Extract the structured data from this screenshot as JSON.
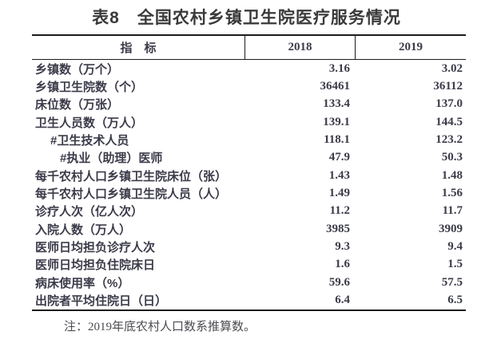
{
  "title": "表8　全国农村乡镇卫生院医疗服务情况",
  "table": {
    "columns": {
      "indicator": "指　标",
      "year1": "2018",
      "year2": "2019"
    },
    "rows": [
      {
        "label": "乡镇数（万个）",
        "v2018": "3.16",
        "v2019": "3.02",
        "indent": 0
      },
      {
        "label": "乡镇卫生院数（个）",
        "v2018": "36461",
        "v2019": "36112",
        "indent": 0
      },
      {
        "label": "床位数（万张）",
        "v2018": "133.4",
        "v2019": "137.0",
        "indent": 0
      },
      {
        "label": "卫生人员数（万人）",
        "v2018": "139.1",
        "v2019": "144.5",
        "indent": 0
      },
      {
        "label": "#卫生技术人员",
        "v2018": "118.1",
        "v2019": "123.2",
        "indent": 1
      },
      {
        "label": "#执业（助理）医师",
        "v2018": "47.9",
        "v2019": "50.3",
        "indent": 2
      },
      {
        "label": "每千农村人口乡镇卫生院床位（张）",
        "v2018": "1.43",
        "v2019": "1.48",
        "indent": 0
      },
      {
        "label": "每千农村人口乡镇卫生院人员（人）",
        "v2018": "1.49",
        "v2019": "1.56",
        "indent": 0
      },
      {
        "label": "诊疗人次（亿人次）",
        "v2018": "11.2",
        "v2019": "11.7",
        "indent": 0
      },
      {
        "label": "入院人数（万人）",
        "v2018": "3985",
        "v2019": "3909",
        "indent": 0
      },
      {
        "label": "医师日均担负诊疗人次",
        "v2018": "9.3",
        "v2019": "9.4",
        "indent": 0
      },
      {
        "label": "医师日均担负住院床日",
        "v2018": "1.6",
        "v2019": "1.5",
        "indent": 0
      },
      {
        "label": "病床使用率（%）",
        "v2018": "59.6",
        "v2019": "57.5",
        "indent": 0
      },
      {
        "label": "出院者平均住院日（日）",
        "v2018": "6.4",
        "v2019": "6.5",
        "indent": 0
      }
    ]
  },
  "note": "注：2019年底农村人口数系推算数。",
  "colors": {
    "text": "#3b3b4a",
    "title": "#3a3a3a",
    "line": "#1c1c1c",
    "note": "#4b4b52",
    "background": "#ffffff"
  }
}
